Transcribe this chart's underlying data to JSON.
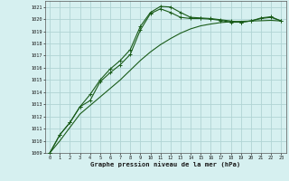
{
  "xlabel": "Graphe pression niveau de la mer (hPa)",
  "bg_color": "#d6f0f0",
  "grid_color": "#b0d4d4",
  "line_color": "#1a5c1a",
  "ylim": [
    1009,
    1021.5
  ],
  "xlim": [
    -0.5,
    23.5
  ],
  "yticks": [
    1009,
    1010,
    1011,
    1012,
    1013,
    1014,
    1015,
    1016,
    1017,
    1018,
    1019,
    1020,
    1021
  ],
  "xticks": [
    0,
    1,
    2,
    3,
    4,
    5,
    6,
    7,
    8,
    9,
    10,
    11,
    12,
    13,
    14,
    15,
    16,
    17,
    18,
    19,
    20,
    21,
    22,
    23
  ],
  "series1": [
    1009.0,
    1010.5,
    1011.5,
    1012.8,
    1013.8,
    1015.0,
    1015.9,
    1016.6,
    1017.5,
    1019.4,
    1020.55,
    1021.05,
    1021.0,
    1020.55,
    1020.15,
    1020.1,
    1020.05,
    1019.95,
    1019.85,
    1019.75,
    1019.85,
    1020.1,
    1020.2,
    1019.85
  ],
  "series2": [
    1009.0,
    1010.5,
    1011.5,
    1012.8,
    1013.3,
    1014.85,
    1015.6,
    1016.25,
    1017.1,
    1019.1,
    1020.45,
    1020.85,
    1020.55,
    1020.15,
    1020.05,
    1020.05,
    1020.0,
    1019.9,
    1019.75,
    1019.75,
    1019.85,
    1020.05,
    1020.15,
    1019.85
  ],
  "series3": [
    1009.0,
    1010.0,
    1011.1,
    1012.2,
    1012.9,
    1013.6,
    1014.3,
    1015.0,
    1015.8,
    1016.6,
    1017.3,
    1017.9,
    1018.4,
    1018.85,
    1019.2,
    1019.45,
    1019.6,
    1019.72,
    1019.78,
    1019.82,
    1019.85,
    1019.87,
    1019.9,
    1019.85
  ]
}
